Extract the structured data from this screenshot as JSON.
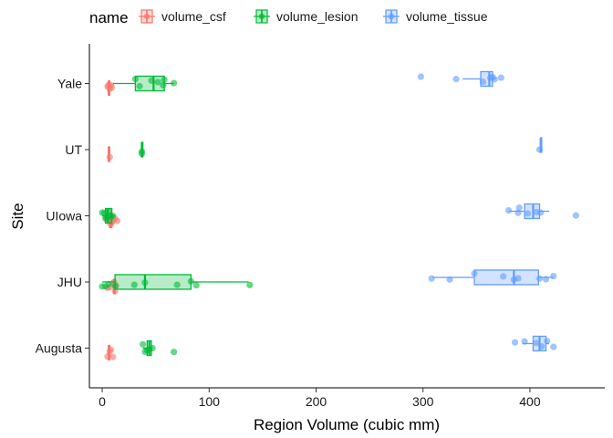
{
  "chart_data": {
    "type": "boxplot",
    "orientation": "horizontal",
    "xlabel": "Region Volume (cubic mm)",
    "ylabel": "Site",
    "xlim": [
      -12,
      470
    ],
    "xticks": [
      0,
      100,
      200,
      300,
      400
    ],
    "categories": [
      "Augusta",
      "JHU",
      "UIowa",
      "UT",
      "Yale"
    ],
    "legend": {
      "title": "name",
      "position": "top"
    },
    "grid": false,
    "series": [
      {
        "name": "volume_csf",
        "color": "#F8766D",
        "boxes": {
          "Augusta": [
            5,
            6,
            6,
            7,
            7
          ],
          "JHU": [
            10,
            11,
            11,
            12,
            12
          ],
          "UIowa": [
            6,
            7,
            8,
            9,
            10
          ],
          "UT": [
            6,
            6,
            6,
            7,
            7
          ],
          "Yale": [
            6,
            6,
            6,
            7,
            7
          ]
        },
        "points": {
          "Augusta": [
            5,
            7,
            8,
            10
          ],
          "JHU": [
            5,
            7,
            10,
            11,
            12,
            13
          ],
          "UIowa": [
            5,
            7,
            8,
            9,
            10,
            12,
            14
          ],
          "UT": [
            7
          ],
          "Yale": [
            5,
            6,
            7,
            8,
            9
          ]
        }
      },
      {
        "name": "volume_lesion",
        "color": "#00BA38",
        "boxes": {
          "Augusta": [
            38,
            42,
            44,
            46,
            47
          ],
          "JHU": [
            0,
            12,
            40,
            83,
            137
          ],
          "UIowa": [
            0,
            3,
            5,
            9,
            12
          ],
          "UT": [
            37,
            37,
            37,
            38,
            38
          ],
          "Yale": [
            10,
            31,
            48,
            58,
            67
          ]
        },
        "points": {
          "Augusta": [
            38,
            40,
            42,
            44,
            47,
            67
          ],
          "JHU": [
            0,
            3,
            6,
            12,
            30,
            40,
            70,
            83,
            88,
            138
          ],
          "UIowa": [
            0,
            2,
            3,
            4,
            5,
            6,
            8,
            10
          ],
          "UT": [
            37,
            37
          ],
          "Yale": [
            31,
            35,
            46,
            52,
            57,
            58,
            67
          ]
        }
      },
      {
        "name": "volume_tissue",
        "color": "#619CFF",
        "boxes": {
          "Augusta": [
            393,
            403,
            409,
            415,
            418
          ],
          "JHU": [
            309,
            348,
            385,
            408,
            422
          ],
          "UIowa": [
            380,
            395,
            403,
            409,
            418
          ],
          "UT": [
            410,
            410,
            410,
            410,
            410
          ],
          "Yale": [
            337,
            354,
            362,
            365,
            368
          ]
        },
        "points": {
          "Augusta": [
            386,
            395,
            406,
            411,
            416,
            422
          ],
          "JHU": [
            308,
            325,
            348,
            375,
            385,
            389,
            409,
            415,
            422
          ],
          "UIowa": [
            380,
            389,
            390,
            398,
            406,
            410,
            443
          ],
          "UT": [
            409
          ],
          "Yale": [
            298,
            331,
            356,
            363,
            365,
            367,
            373
          ]
        }
      }
    ]
  }
}
